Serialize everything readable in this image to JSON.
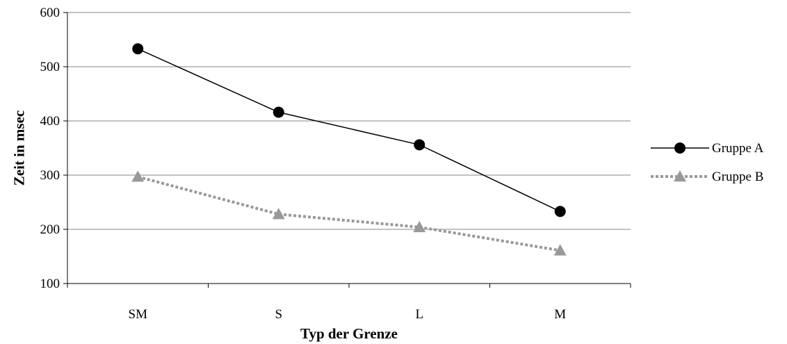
{
  "chart_data": {
    "type": "line",
    "categories": [
      "SM",
      "S",
      "L",
      "M"
    ],
    "series": [
      {
        "name": "Gruppe A",
        "values": [
          533,
          416,
          356,
          233
        ],
        "color": "#000000",
        "marker": "circle",
        "line": "solid"
      },
      {
        "name": "Gruppe B",
        "values": [
          297,
          228,
          204,
          161
        ],
        "color": "#999999",
        "marker": "triangle",
        "line": "dotted"
      }
    ],
    "xlabel": "Typ der Grenze",
    "ylabel": "Zeit in msec",
    "ylim": [
      100,
      600
    ],
    "yticks": [
      100,
      200,
      300,
      400,
      500,
      600
    ],
    "grid": "horizontal",
    "legend": "right"
  }
}
